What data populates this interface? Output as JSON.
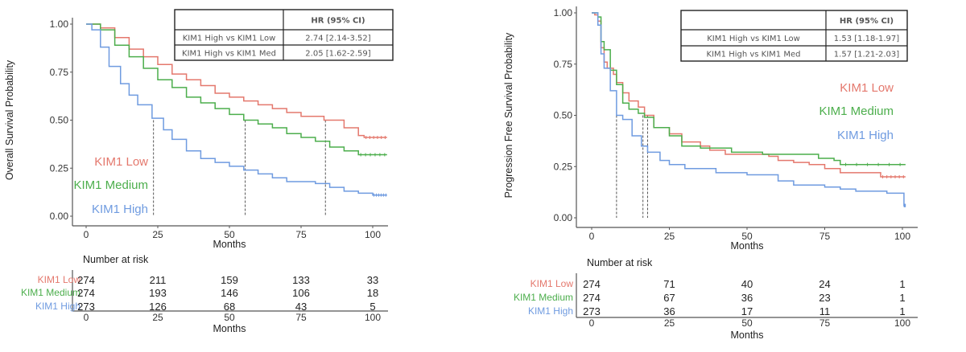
{
  "colors": {
    "low": "#e4786d",
    "medium": "#4cae4c",
    "high": "#6f9be0"
  },
  "chart_data": [
    {
      "type": "line",
      "subtype": "kaplan-meier step",
      "ylabel": "Overall Survival Probability",
      "xlabel": "Months",
      "xlim": [
        0,
        105
      ],
      "ylim": [
        0,
        1
      ],
      "xticks": [
        "0",
        "25",
        "50",
        "75",
        "100"
      ],
      "yticks": [
        "0.00",
        "0.25",
        "0.50",
        "0.75",
        "1.00"
      ],
      "grid": false,
      "legend_placement": "bottom-left",
      "median_lines": [
        23.5,
        55.5,
        83.5
      ],
      "hr_table": {
        "header": [
          "",
          "HR (95% CI)"
        ],
        "rows": [
          [
            "KIM1 High vs KIM1 Low",
            "2.74 [2.14-3.52]"
          ],
          [
            "KIM1 High vs KIM1 Med",
            "2.05 [1.62-2.59]"
          ]
        ]
      },
      "series": [
        {
          "name": "KIM1 Low",
          "color_key": "low",
          "points": [
            [
              0,
              1
            ],
            [
              3,
              1
            ],
            [
              5,
              0.98
            ],
            [
              10,
              0.93
            ],
            [
              15,
              0.87
            ],
            [
              20,
              0.83
            ],
            [
              25,
              0.79
            ],
            [
              30,
              0.74
            ],
            [
              35,
              0.71
            ],
            [
              40,
              0.68
            ],
            [
              45,
              0.64
            ],
            [
              50,
              0.62
            ],
            [
              55,
              0.6
            ],
            [
              60,
              0.58
            ],
            [
              65,
              0.56
            ],
            [
              70,
              0.54
            ],
            [
              75,
              0.52
            ],
            [
              83,
              0.5
            ],
            [
              90,
              0.46
            ],
            [
              95,
              0.42
            ],
            [
              97,
              0.41
            ],
            [
              105,
              0.41
            ]
          ]
        },
        {
          "name": "KIM1 Medium",
          "color_key": "medium",
          "points": [
            [
              0,
              1
            ],
            [
              3,
              1
            ],
            [
              5,
              0.97
            ],
            [
              10,
              0.89
            ],
            [
              15,
              0.83
            ],
            [
              20,
              0.77
            ],
            [
              25,
              0.71
            ],
            [
              30,
              0.67
            ],
            [
              35,
              0.62
            ],
            [
              40,
              0.59
            ],
            [
              45,
              0.56
            ],
            [
              50,
              0.53
            ],
            [
              55,
              0.5
            ],
            [
              60,
              0.48
            ],
            [
              65,
              0.46
            ],
            [
              70,
              0.43
            ],
            [
              75,
              0.41
            ],
            [
              80,
              0.39
            ],
            [
              85,
              0.36
            ],
            [
              90,
              0.34
            ],
            [
              95,
              0.32
            ],
            [
              105,
              0.32
            ]
          ]
        },
        {
          "name": "KIM1 High",
          "color_key": "high",
          "points": [
            [
              0,
              1
            ],
            [
              2,
              0.97
            ],
            [
              5,
              0.88
            ],
            [
              8,
              0.78
            ],
            [
              12,
              0.69
            ],
            [
              15,
              0.63
            ],
            [
              18,
              0.58
            ],
            [
              23,
              0.51
            ],
            [
              27,
              0.45
            ],
            [
              30,
              0.4
            ],
            [
              35,
              0.34
            ],
            [
              40,
              0.3
            ],
            [
              45,
              0.28
            ],
            [
              50,
              0.26
            ],
            [
              55,
              0.24
            ],
            [
              60,
              0.22
            ],
            [
              65,
              0.2
            ],
            [
              70,
              0.18
            ],
            [
              80,
              0.17
            ],
            [
              85,
              0.15
            ],
            [
              90,
              0.13
            ],
            [
              95,
              0.12
            ],
            [
              100,
              0.11
            ],
            [
              105,
              0.11
            ]
          ]
        }
      ],
      "risk_table": {
        "title": "Number at risk",
        "xlabel": "Months",
        "times": [
          "0",
          "25",
          "50",
          "75",
          "100"
        ],
        "rows": [
          {
            "label": "KIM1 Low",
            "color_key": "low",
            "values": [
              "274",
              "211",
              "159",
              "133",
              "33"
            ]
          },
          {
            "label": "KIM1 Medium",
            "color_key": "medium",
            "values": [
              "274",
              "193",
              "146",
              "106",
              "18"
            ]
          },
          {
            "label": "KIM1 High",
            "color_key": "high",
            "values": [
              "273",
              "126",
              "68",
              "43",
              "5"
            ]
          }
        ]
      }
    },
    {
      "type": "line",
      "subtype": "kaplan-meier step",
      "ylabel": "Progression Free Survival Probability",
      "xlabel": "Months",
      "xlim": [
        0,
        101
      ],
      "ylim": [
        0,
        1
      ],
      "xticks": [
        "0",
        "25",
        "50",
        "75",
        "100"
      ],
      "yticks": [
        "0.00",
        "0.25",
        "0.50",
        "0.75",
        "1.00"
      ],
      "grid": false,
      "legend_placement": "right",
      "median_lines": [
        8,
        16.5,
        18
      ],
      "hr_table": {
        "header": [
          "",
          "HR (95% CI)"
        ],
        "rows": [
          [
            "KIM1 High vs KIM1 Low",
            "1.53 [1.18-1.97]"
          ],
          [
            "KIM1 High vs KIM1 Med",
            "1.57 [1.21-2.03]"
          ]
        ]
      },
      "series": [
        {
          "name": "KIM1 Low",
          "color_key": "low",
          "points": [
            [
              0,
              1
            ],
            [
              1,
              0.99
            ],
            [
              2,
              0.96
            ],
            [
              3,
              0.83
            ],
            [
              4,
              0.76
            ],
            [
              5,
              0.73
            ],
            [
              7,
              0.7
            ],
            [
              8,
              0.66
            ],
            [
              10,
              0.61
            ],
            [
              12,
              0.57
            ],
            [
              15,
              0.54
            ],
            [
              17,
              0.5
            ],
            [
              20,
              0.44
            ],
            [
              25,
              0.41
            ],
            [
              29,
              0.37
            ],
            [
              35,
              0.35
            ],
            [
              38,
              0.33
            ],
            [
              43,
              0.31
            ],
            [
              57,
              0.3
            ],
            [
              60,
              0.28
            ],
            [
              65,
              0.27
            ],
            [
              70,
              0.26
            ],
            [
              75,
              0.24
            ],
            [
              80,
              0.22
            ],
            [
              93,
              0.2
            ],
            [
              101,
              0.2
            ]
          ]
        },
        {
          "name": "KIM1 Medium",
          "color_key": "medium",
          "points": [
            [
              0,
              1
            ],
            [
              2,
              0.98
            ],
            [
              3,
              0.86
            ],
            [
              4,
              0.82
            ],
            [
              6,
              0.72
            ],
            [
              8,
              0.65
            ],
            [
              10,
              0.56
            ],
            [
              12,
              0.53
            ],
            [
              15,
              0.51
            ],
            [
              17,
              0.49
            ],
            [
              20,
              0.44
            ],
            [
              25,
              0.4
            ],
            [
              29,
              0.35
            ],
            [
              35,
              0.34
            ],
            [
              45,
              0.32
            ],
            [
              55,
              0.31
            ],
            [
              73,
              0.29
            ],
            [
              78,
              0.28
            ],
            [
              80,
              0.26
            ],
            [
              101,
              0.26
            ]
          ]
        },
        {
          "name": "KIM1 High",
          "color_key": "high",
          "points": [
            [
              0,
              1
            ],
            [
              2,
              0.94
            ],
            [
              3,
              0.8
            ],
            [
              4,
              0.73
            ],
            [
              6,
              0.62
            ],
            [
              8,
              0.5
            ],
            [
              10,
              0.48
            ],
            [
              13,
              0.4
            ],
            [
              16,
              0.35
            ],
            [
              18,
              0.32
            ],
            [
              22,
              0.28
            ],
            [
              25,
              0.26
            ],
            [
              30,
              0.24
            ],
            [
              40,
              0.22
            ],
            [
              50,
              0.21
            ],
            [
              60,
              0.18
            ],
            [
              65,
              0.16
            ],
            [
              75,
              0.15
            ],
            [
              80,
              0.14
            ],
            [
              85,
              0.13
            ],
            [
              95,
              0.12
            ],
            [
              100.5,
              0.06
            ],
            [
              101,
              0.06
            ]
          ]
        }
      ],
      "risk_table": {
        "title": "Number at risk",
        "xlabel": "Months",
        "times": [
          "0",
          "25",
          "50",
          "75",
          "100"
        ],
        "rows": [
          {
            "label": "KIM1 Low",
            "color_key": "low",
            "values": [
              "274",
              "71",
              "40",
              "24",
              "1"
            ]
          },
          {
            "label": "KIM1 Medium",
            "color_key": "medium",
            "values": [
              "274",
              "67",
              "36",
              "23",
              "1"
            ]
          },
          {
            "label": "KIM1 High",
            "color_key": "high",
            "values": [
              "273",
              "36",
              "17",
              "11",
              "1"
            ]
          }
        ]
      }
    }
  ]
}
